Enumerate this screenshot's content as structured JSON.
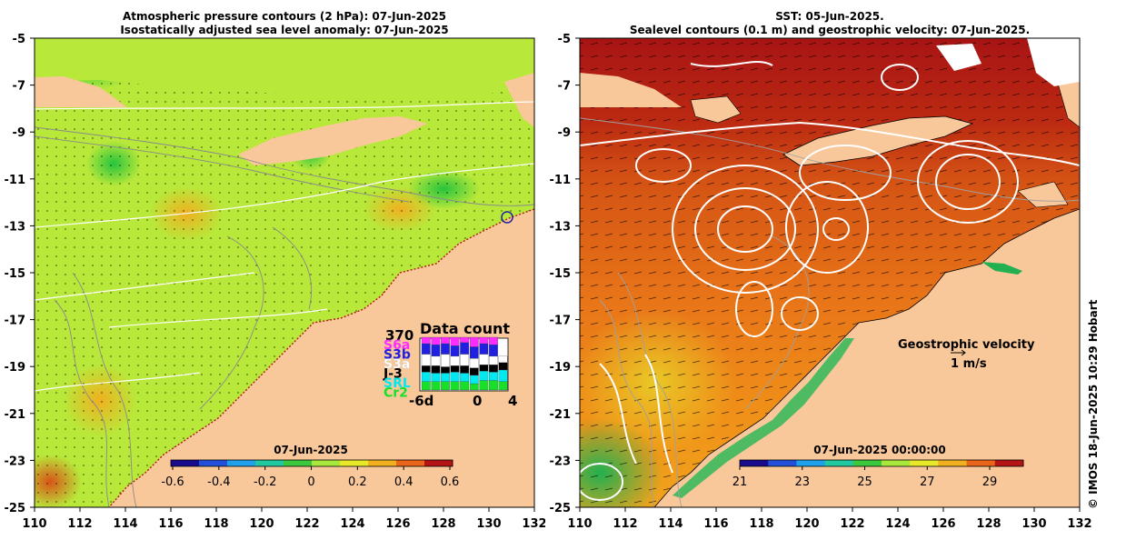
{
  "left": {
    "title_line1": "Atmospheric pressure contours (2 hPa): 07-Jun-2025",
    "title_line2": "Isostatically adjusted sea level anomaly: 07-Jun-2025",
    "colorbar_label": "07-Jun-2025",
    "colorbar_ticks": [
      "-0.6",
      "-0.4",
      "-0.2",
      "0",
      "0.2",
      "0.4",
      "0.6"
    ],
    "colorbar_colors": [
      "#1a0a8c",
      "#2350d8",
      "#1fa0e8",
      "#22c8a0",
      "#3cc83c",
      "#a8e83c",
      "#e8e82a",
      "#f0b020",
      "#e86418",
      "#b41414"
    ],
    "inset": {
      "title": "Data count",
      "max_label": "370",
      "x_labels": [
        "-6d",
        "0",
        "4"
      ],
      "missions": [
        {
          "label": "S6a",
          "color": "#ff2cff"
        },
        {
          "label": "S3b",
          "color": "#2020e0"
        },
        {
          "label": "S3a",
          "color": "#ffffff"
        },
        {
          "label": "J-3",
          "color": "#000000"
        },
        {
          "label": "SRL",
          "color": "#00e8f0"
        },
        {
          "label": "Cr2",
          "color": "#18e028"
        }
      ],
      "bars": [
        [
          0.12,
          0.2,
          0.22,
          0.12,
          0.18,
          0.16
        ],
        [
          0.14,
          0.22,
          0.18,
          0.14,
          0.16,
          0.16
        ],
        [
          0.12,
          0.2,
          0.24,
          0.12,
          0.16,
          0.16
        ],
        [
          0.16,
          0.2,
          0.18,
          0.12,
          0.18,
          0.16
        ],
        [
          0.1,
          0.22,
          0.22,
          0.14,
          0.16,
          0.16
        ],
        [
          0.18,
          0.22,
          0.18,
          0.14,
          0.16,
          0.12
        ],
        [
          0.12,
          0.2,
          0.2,
          0.12,
          0.18,
          0.18
        ],
        [
          0.14,
          0.22,
          0.16,
          0.14,
          0.16,
          0.18
        ],
        [
          0.0,
          0.0,
          0.12,
          0.14,
          0.22,
          0.16
        ]
      ]
    }
  },
  "right": {
    "title_line1": "SST: 05-Jun-2025.",
    "title_line2": "Sealevel contours (0.1 m) and geostrophic velocity: 07-Jun-2025.",
    "colorbar_label": "07-Jun-2025 00:00:00",
    "colorbar_ticks": [
      "21",
      "23",
      "25",
      "27",
      "29"
    ],
    "colorbar_colors": [
      "#1a0a8c",
      "#2350d8",
      "#1fa0e8",
      "#22c8a0",
      "#3cc83c",
      "#a8e83c",
      "#e8e82a",
      "#f0b020",
      "#e86418",
      "#b41414"
    ],
    "legend_title": "Geostrophic velocity",
    "legend_scale": "1 m/s"
  },
  "axes": {
    "y_ticks": [
      "-5",
      "-7",
      "-9",
      "-11",
      "-13",
      "-15",
      "-17",
      "-19",
      "-21",
      "-23",
      "-25"
    ],
    "x_ticks": [
      "110",
      "112",
      "114",
      "116",
      "118",
      "120",
      "122",
      "124",
      "126",
      "128",
      "130",
      "132"
    ]
  },
  "credit": "© IMOS 18-Jun-2025 10:29 Hobart",
  "colors": {
    "land": "#f9c89a",
    "sla_base": "#b4e83c",
    "sst_base": "#ec8a14"
  }
}
